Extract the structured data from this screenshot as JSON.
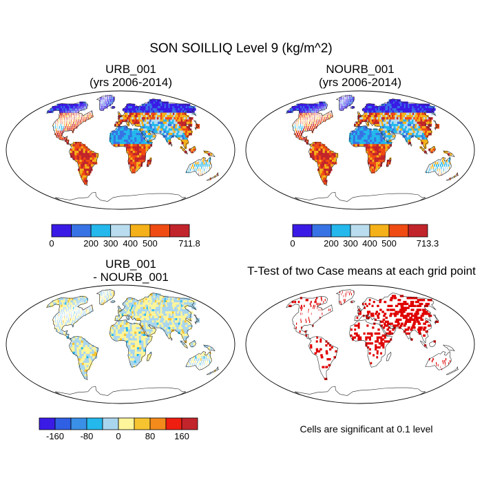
{
  "figure": {
    "title": "SON SOILLIQ Level 9 (kg/m^2)"
  },
  "colors": {
    "land_outline": "#222222",
    "significant": "#e00000",
    "map_border": "#000000"
  },
  "panels": [
    {
      "id": "urb",
      "title_line1": "URB_001",
      "title_line2": "(yrs 2006-2014)",
      "scheme": "absolute"
    },
    {
      "id": "nourb",
      "title_line1": "NOURB_001",
      "title_line2": "(yrs 2006-2014)",
      "scheme": "absolute"
    },
    {
      "id": "diff",
      "title_line1": "URB_001",
      "title_line2": "- NOURB_001",
      "scheme": "difference"
    },
    {
      "id": "ttest",
      "title_line1": "T-Test of two Case means at each grid point",
      "title_line2": "",
      "scheme": "ttest"
    }
  ],
  "colorbars": [
    {
      "id": "cbar-urb",
      "colors": [
        "#3a1be6",
        "#3773e4",
        "#24b8ec",
        "#b9dcee",
        "#f5b119",
        "#f04b12",
        "#c2242b"
      ],
      "labels": [
        "0",
        "200",
        "300",
        "400",
        "500",
        "711.8"
      ],
      "label_edges": [
        0,
        2,
        3,
        4,
        5,
        7
      ]
    },
    {
      "id": "cbar-nourb",
      "colors": [
        "#3a1be6",
        "#3773e4",
        "#24b8ec",
        "#b9dcee",
        "#f5b119",
        "#f04b12",
        "#c2242b"
      ],
      "labels": [
        "0",
        "200",
        "300",
        "400",
        "500",
        "713.3"
      ],
      "label_edges": [
        0,
        2,
        3,
        4,
        5,
        7
      ]
    },
    {
      "id": "cbar-diff",
      "colors": [
        "#3a1be6",
        "#2f5fe3",
        "#3a8fe6",
        "#24b8ec",
        "#a9d6ee",
        "#fff59a",
        "#f7c431",
        "#f28b1b",
        "#ee1e10",
        "#c2242b"
      ],
      "labels": [
        "-160",
        "-80",
        "0",
        "80",
        "160"
      ],
      "label_edges": [
        1,
        3,
        5,
        7,
        9
      ]
    }
  ],
  "note": "Cells are significant at 0.1 level"
}
